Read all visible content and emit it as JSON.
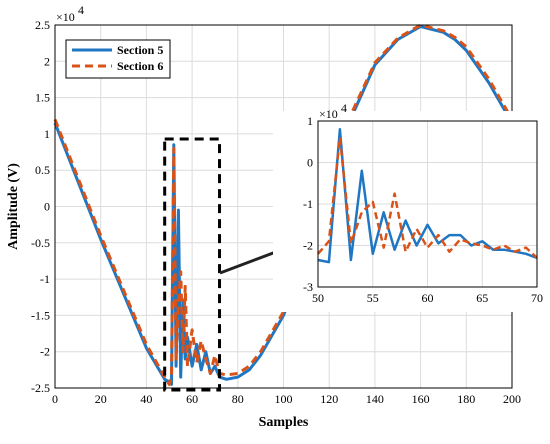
{
  "chart_data": [
    {
      "type": "line",
      "xlabel": "Samples",
      "ylabel": "Amplitude (V)",
      "xlim": [
        0,
        200
      ],
      "ylim": [
        -2.5,
        2.5
      ],
      "xticks": [
        "0",
        "20",
        "40",
        "60",
        "80",
        "100",
        "120",
        "140",
        "160",
        "180",
        "200"
      ],
      "yticks": [
        "-2.5",
        "-2",
        "-1.5",
        "-1",
        "-0.5",
        "0",
        "0.5",
        "1",
        "1.5",
        "2",
        "2.5"
      ],
      "y_multiplier": "×10",
      "y_exponent": "4",
      "grid": true,
      "legend_position": "top-left",
      "series": [
        {
          "name": "Section 5",
          "color": "#1f77c4",
          "style": "solid",
          "x": [
            0,
            10,
            20,
            30,
            40,
            48,
            50,
            51,
            52,
            53,
            54,
            55,
            56,
            57,
            58,
            60,
            62,
            64,
            66,
            68,
            70,
            72,
            75,
            80,
            85,
            90,
            100,
            110,
            120,
            130,
            140,
            150,
            160,
            170,
            175,
            180,
            190,
            200
          ],
          "y": [
            1.15,
            0.35,
            -0.45,
            -1.2,
            -1.95,
            -2.38,
            -2.42,
            -2.45,
            0.85,
            -2.2,
            -0.05,
            -2.35,
            -1.3,
            -2.1,
            -1.8,
            -2.2,
            -1.9,
            -2.25,
            -2.0,
            -2.3,
            -2.2,
            -2.35,
            -2.38,
            -2.35,
            -2.25,
            -2.05,
            -1.5,
            -0.7,
            0.3,
            1.25,
            1.95,
            2.3,
            2.48,
            2.4,
            2.3,
            2.15,
            1.7,
            1.15
          ]
        },
        {
          "name": "Section 6",
          "color": "#d95319",
          "style": "dashed",
          "x": [
            0,
            10,
            20,
            30,
            40,
            48,
            50,
            51,
            52,
            53,
            54,
            55,
            56,
            57,
            58,
            60,
            62,
            64,
            66,
            68,
            70,
            72,
            75,
            80,
            85,
            90,
            100,
            110,
            120,
            130,
            140,
            150,
            160,
            170,
            175,
            180,
            190,
            200
          ],
          "y": [
            1.2,
            0.4,
            -0.4,
            -1.15,
            -1.9,
            -2.35,
            -2.45,
            -2.3,
            0.8,
            -2.1,
            -1.3,
            -0.9,
            -2.0,
            -1.1,
            -2.2,
            -1.7,
            -2.15,
            -1.85,
            -2.1,
            -2.3,
            -2.05,
            -2.3,
            -2.32,
            -2.3,
            -2.2,
            -2.0,
            -1.45,
            -0.65,
            0.35,
            1.3,
            1.98,
            2.32,
            2.5,
            2.42,
            2.33,
            2.2,
            1.75,
            1.2
          ]
        }
      ]
    },
    {
      "type": "line",
      "xlim": [
        50,
        70
      ],
      "ylim": [
        -3,
        1
      ],
      "xticks": [
        "50",
        "55",
        "60",
        "65",
        "70"
      ],
      "yticks": [
        "-3",
        "-2",
        "-1",
        "0",
        "1"
      ],
      "y_multiplier": "×10",
      "y_exponent": "4",
      "grid": true,
      "series": [
        {
          "color": "#1f77c4",
          "style": "solid",
          "x": [
            50,
            51,
            52,
            53,
            54,
            55,
            56,
            57,
            58,
            59,
            60,
            61,
            62,
            63,
            64,
            65,
            66,
            67,
            68,
            69,
            70
          ],
          "y": [
            -2.35,
            -2.4,
            0.8,
            -2.35,
            -0.2,
            -2.2,
            -1.2,
            -2.1,
            -1.4,
            -2.0,
            -1.5,
            -1.95,
            -1.75,
            -1.75,
            -2.0,
            -1.9,
            -2.1,
            -2.1,
            -2.15,
            -2.2,
            -2.3
          ]
        },
        {
          "color": "#d95319",
          "style": "dashed",
          "x": [
            50,
            51,
            52,
            53,
            54,
            55,
            56,
            57,
            58,
            59,
            60,
            61,
            62,
            63,
            64,
            65,
            66,
            67,
            68,
            69,
            70
          ],
          "y": [
            -2.2,
            -1.9,
            0.6,
            -1.95,
            -1.2,
            -0.95,
            -2.05,
            -0.75,
            -2.15,
            -1.6,
            -2.05,
            -1.75,
            -2.15,
            -1.85,
            -1.95,
            -2.0,
            -2.1,
            -2.0,
            -2.15,
            -2.05,
            -2.3
          ]
        }
      ]
    }
  ]
}
